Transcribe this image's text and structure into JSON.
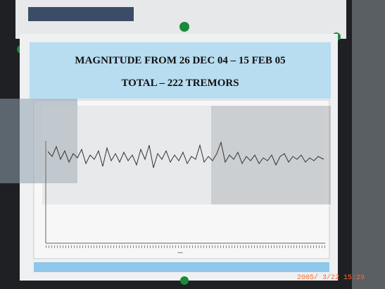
{
  "poster": {
    "title": "MAGNITUDE FROM 26 DEC 04 – 15 FEB 05",
    "subtitle": "TOTAL – 222 TREMORS"
  },
  "timestamp": "2005/ 3/22 15:29"
}
